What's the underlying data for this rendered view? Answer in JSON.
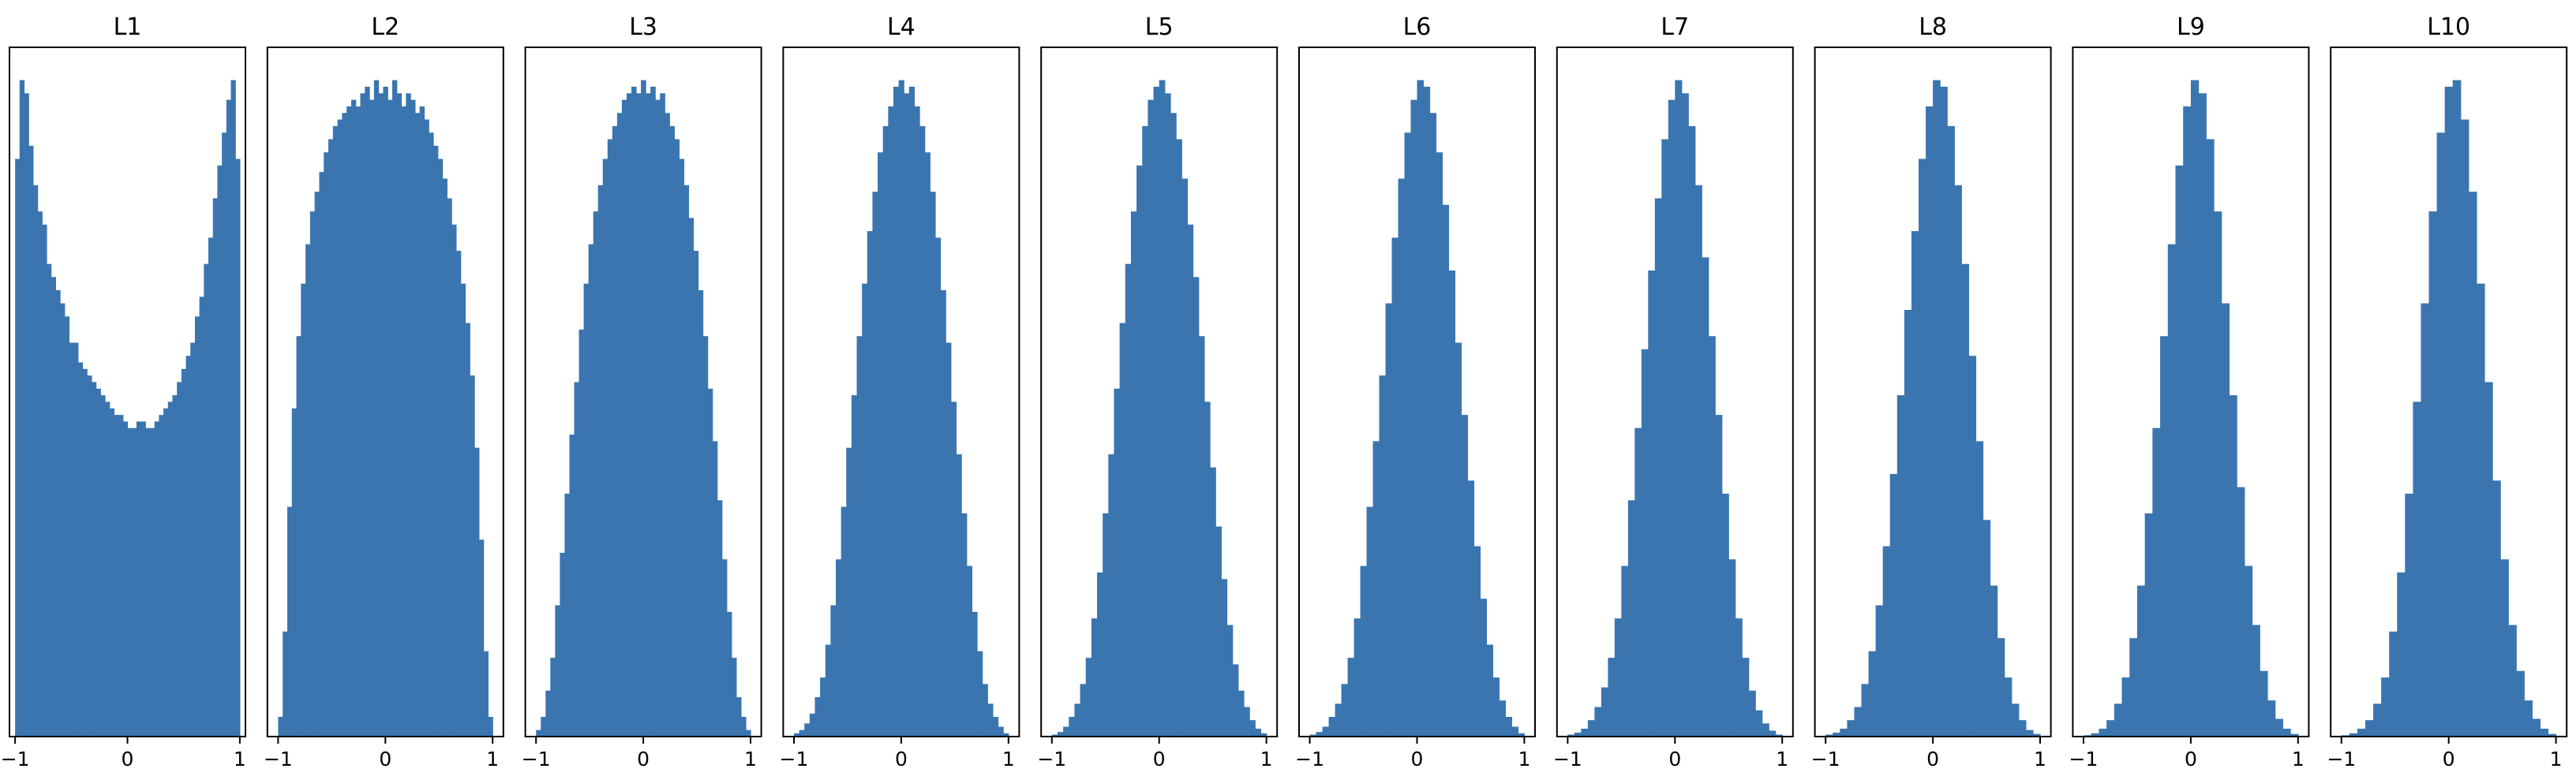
{
  "chart_data": [
    {
      "type": "bar",
      "title": "L1",
      "xlim": [
        -1.05,
        1.05
      ],
      "xticks": [
        -1,
        0,
        1
      ],
      "xtick_labels": [
        "−1",
        "0",
        "1"
      ],
      "ylim": [
        0,
        1.05
      ],
      "y_ticks_shown": false,
      "bin_edges_range": [
        -1,
        1
      ],
      "values": [
        0.88,
        1.0,
        0.98,
        0.9,
        0.84,
        0.8,
        0.78,
        0.72,
        0.7,
        0.68,
        0.66,
        0.64,
        0.6,
        0.6,
        0.57,
        0.56,
        0.55,
        0.54,
        0.53,
        0.52,
        0.51,
        0.5,
        0.49,
        0.49,
        0.48,
        0.47,
        0.47,
        0.48,
        0.48,
        0.47,
        0.47,
        0.48,
        0.49,
        0.5,
        0.51,
        0.52,
        0.54,
        0.56,
        0.58,
        0.6,
        0.64,
        0.67,
        0.72,
        0.76,
        0.82,
        0.87,
        0.92,
        0.97,
        1.0,
        0.88
      ]
    },
    {
      "type": "bar",
      "title": "L2",
      "xlim": [
        -1.1,
        1.1
      ],
      "xticks": [
        -1,
        0,
        1
      ],
      "xtick_labels": [
        "−1",
        "0",
        "1"
      ],
      "ylim": [
        0,
        1.05
      ],
      "y_ticks_shown": false,
      "bin_edges_range": [
        -1,
        1
      ],
      "values": [
        0.03,
        0.16,
        0.35,
        0.5,
        0.61,
        0.69,
        0.75,
        0.8,
        0.83,
        0.86,
        0.89,
        0.91,
        0.93,
        0.94,
        0.95,
        0.96,
        0.97,
        0.96,
        0.98,
        0.99,
        0.97,
        1.0,
        0.98,
        0.99,
        0.97,
        1.0,
        0.98,
        0.96,
        0.98,
        0.97,
        0.95,
        0.96,
        0.94,
        0.92,
        0.9,
        0.88,
        0.85,
        0.82,
        0.78,
        0.74,
        0.69,
        0.63,
        0.55,
        0.44,
        0.3,
        0.13,
        0.03
      ]
    },
    {
      "type": "bar",
      "title": "L3",
      "xlim": [
        -1.1,
        1.1
      ],
      "xticks": [
        -1,
        0,
        1
      ],
      "xtick_labels": [
        "−1",
        "0",
        "1"
      ],
      "ylim": [
        0,
        1.05
      ],
      "y_ticks_shown": false,
      "bin_edges_range": [
        -1,
        1
      ],
      "values": [
        0.01,
        0.03,
        0.07,
        0.12,
        0.2,
        0.28,
        0.37,
        0.46,
        0.54,
        0.62,
        0.69,
        0.75,
        0.8,
        0.84,
        0.88,
        0.91,
        0.93,
        0.95,
        0.97,
        0.98,
        0.99,
        0.98,
        1.0,
        0.98,
        0.99,
        0.97,
        0.98,
        0.95,
        0.93,
        0.91,
        0.88,
        0.84,
        0.79,
        0.74,
        0.68,
        0.61,
        0.53,
        0.45,
        0.36,
        0.27,
        0.19,
        0.12,
        0.06,
        0.03,
        0.01
      ]
    },
    {
      "type": "bar",
      "title": "L4",
      "xlim": [
        -1.1,
        1.1
      ],
      "xticks": [
        -1,
        0,
        1
      ],
      "xtick_labels": [
        "−1",
        "0",
        "1"
      ],
      "ylim": [
        0,
        1.05
      ],
      "y_ticks_shown": false,
      "bin_edges_range": [
        -1,
        1
      ],
      "values": [
        0.005,
        0.01,
        0.02,
        0.035,
        0.06,
        0.09,
        0.14,
        0.2,
        0.27,
        0.35,
        0.44,
        0.52,
        0.61,
        0.69,
        0.77,
        0.83,
        0.89,
        0.93,
        0.96,
        0.99,
        1.0,
        0.98,
        0.99,
        0.96,
        0.93,
        0.89,
        0.83,
        0.76,
        0.68,
        0.6,
        0.51,
        0.43,
        0.34,
        0.26,
        0.19,
        0.13,
        0.08,
        0.05,
        0.03,
        0.015,
        0.005
      ]
    },
    {
      "type": "bar",
      "title": "L5",
      "xlim": [
        -1.1,
        1.1
      ],
      "xticks": [
        -1,
        0,
        1
      ],
      "xtick_labels": [
        "−1",
        "0",
        "1"
      ],
      "ylim": [
        0,
        1.05
      ],
      "y_ticks_shown": false,
      "bin_edges_range": [
        -1,
        1
      ],
      "values": [
        0.003,
        0.007,
        0.015,
        0.03,
        0.05,
        0.08,
        0.12,
        0.18,
        0.25,
        0.34,
        0.43,
        0.53,
        0.63,
        0.72,
        0.8,
        0.87,
        0.93,
        0.97,
        0.99,
        1.0,
        0.98,
        0.95,
        0.91,
        0.85,
        0.78,
        0.7,
        0.61,
        0.51,
        0.41,
        0.32,
        0.24,
        0.17,
        0.11,
        0.07,
        0.045,
        0.025,
        0.012,
        0.005
      ]
    },
    {
      "type": "bar",
      "title": "L6",
      "xlim": [
        -1.1,
        1.1
      ],
      "xticks": [
        -1,
        0,
        1
      ],
      "xtick_labels": [
        "−1",
        "0",
        "1"
      ],
      "ylim": [
        0,
        1.05
      ],
      "y_ticks_shown": false,
      "bin_edges_range": [
        -1,
        1
      ],
      "values": [
        0.003,
        0.007,
        0.015,
        0.03,
        0.05,
        0.08,
        0.12,
        0.18,
        0.26,
        0.35,
        0.45,
        0.55,
        0.66,
        0.76,
        0.85,
        0.92,
        0.97,
        1.0,
        0.99,
        0.95,
        0.89,
        0.81,
        0.71,
        0.6,
        0.49,
        0.39,
        0.29,
        0.21,
        0.14,
        0.09,
        0.055,
        0.03,
        0.015,
        0.005
      ]
    },
    {
      "type": "bar",
      "title": "L7",
      "xlim": [
        -1.1,
        1.1
      ],
      "xticks": [
        -1,
        0,
        1
      ],
      "xtick_labels": [
        "−1",
        "0",
        "1"
      ],
      "ylim": [
        0,
        1.05
      ],
      "y_ticks_shown": false,
      "bin_edges_range": [
        -1,
        1
      ],
      "values": [
        0.003,
        0.006,
        0.012,
        0.025,
        0.045,
        0.075,
        0.12,
        0.18,
        0.26,
        0.36,
        0.47,
        0.59,
        0.71,
        0.82,
        0.91,
        0.97,
        1.0,
        0.98,
        0.93,
        0.84,
        0.73,
        0.61,
        0.49,
        0.37,
        0.27,
        0.18,
        0.12,
        0.07,
        0.04,
        0.02,
        0.009,
        0.003
      ]
    },
    {
      "type": "bar",
      "title": "L8",
      "xlim": [
        -1.1,
        1.1
      ],
      "xticks": [
        -1,
        0,
        1
      ],
      "xtick_labels": [
        "−1",
        "0",
        "1"
      ],
      "ylim": [
        0,
        1.05
      ],
      "y_ticks_shown": false,
      "bin_edges_range": [
        -1,
        1
      ],
      "values": [
        0.003,
        0.006,
        0.012,
        0.025,
        0.045,
        0.08,
        0.13,
        0.2,
        0.29,
        0.4,
        0.52,
        0.65,
        0.77,
        0.88,
        0.96,
        1.0,
        0.99,
        0.93,
        0.84,
        0.72,
        0.58,
        0.45,
        0.33,
        0.23,
        0.15,
        0.09,
        0.05,
        0.025,
        0.01,
        0.004
      ]
    },
    {
      "type": "bar",
      "title": "L9",
      "xlim": [
        -1.1,
        1.1
      ],
      "xticks": [
        -1,
        0,
        1
      ],
      "xtick_labels": [
        "−1",
        "0",
        "1"
      ],
      "ylim": [
        0,
        1.05
      ],
      "y_ticks_shown": false,
      "bin_edges_range": [
        -1,
        1
      ],
      "values": [
        0.002,
        0.005,
        0.012,
        0.025,
        0.05,
        0.09,
        0.15,
        0.23,
        0.34,
        0.47,
        0.61,
        0.75,
        0.87,
        0.96,
        1.0,
        0.98,
        0.91,
        0.8,
        0.66,
        0.52,
        0.38,
        0.26,
        0.17,
        0.1,
        0.055,
        0.027,
        0.012,
        0.004
      ]
    },
    {
      "type": "bar",
      "title": "L10",
      "xlim": [
        -1.1,
        1.1
      ],
      "xticks": [
        -1,
        0,
        1
      ],
      "xtick_labels": [
        "−1",
        "0",
        "1"
      ],
      "ylim": [
        0,
        1.05
      ],
      "y_ticks_shown": false,
      "bin_edges_range": [
        -1,
        1
      ],
      "values": [
        0.002,
        0.005,
        0.012,
        0.025,
        0.05,
        0.09,
        0.16,
        0.25,
        0.37,
        0.51,
        0.66,
        0.8,
        0.92,
        0.99,
        1.0,
        0.94,
        0.83,
        0.69,
        0.54,
        0.39,
        0.27,
        0.17,
        0.1,
        0.055,
        0.027,
        0.012,
        0.004
      ]
    }
  ],
  "style": {
    "bar_color": "#3b75af",
    "background": "#ffffff",
    "axes_color": "#000000"
  }
}
